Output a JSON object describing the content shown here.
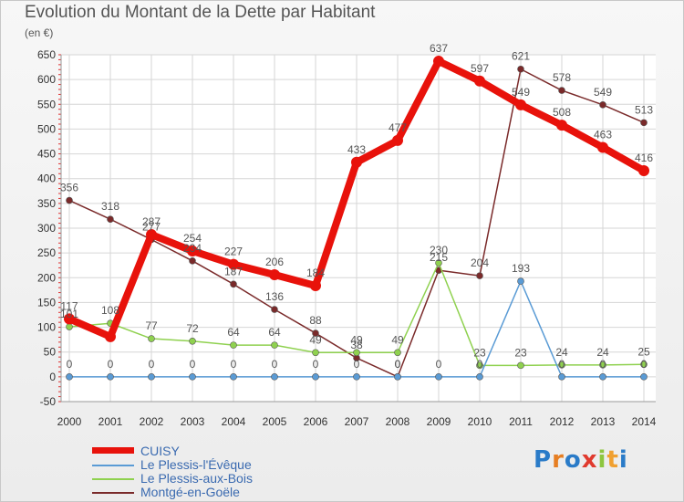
{
  "title": "Evolution du Montant de la Dette par Habitant",
  "unit": "(en €)",
  "brand": {
    "letters": [
      "P",
      "r",
      "o",
      "x",
      "i",
      "t",
      "i"
    ],
    "colors": [
      "#2a7bc8",
      "#e67e22",
      "#2a7bc8",
      "#e03a2e",
      "#8dc63f",
      "#f0a030",
      "#2a7bc8"
    ]
  },
  "chart_data": {
    "type": "line",
    "x": [
      2000,
      2001,
      2002,
      2003,
      2004,
      2005,
      2006,
      2007,
      2008,
      2009,
      2010,
      2011,
      2012,
      2013,
      2014
    ],
    "ylim": [
      -50,
      650
    ],
    "yticks": [
      -50,
      0,
      50,
      100,
      150,
      200,
      250,
      300,
      350,
      400,
      450,
      500,
      550,
      600,
      650
    ],
    "grid": true,
    "legend": "bottom-left",
    "series": [
      {
        "name": "CUISY",
        "color": "#e8120b",
        "values": [
          117,
          81,
          287,
          254,
          227,
          206,
          184,
          433,
          477,
          637,
          597,
          549,
          508,
          463,
          416
        ],
        "labels": [
          "117",
          "",
          "287",
          "254",
          "227",
          "206",
          "184",
          "433",
          "477",
          "637",
          "597",
          "549",
          "508",
          "463",
          "416"
        ]
      },
      {
        "name": "Le Plessis-l'Évêque",
        "color": "#5a9bd5",
        "values": [
          0,
          0,
          0,
          0,
          0,
          0,
          0,
          0,
          0,
          0,
          0,
          193,
          0,
          0,
          0
        ],
        "labels": [
          "0",
          "0",
          "0",
          "0",
          "0",
          "0",
          "0",
          "0",
          "0",
          "0",
          "0",
          "193",
          "0",
          "0",
          "0"
        ]
      },
      {
        "name": "Le Plessis-aux-Bois",
        "color": "#8fd14f",
        "values": [
          101,
          108,
          77,
          72,
          64,
          64,
          49,
          49,
          49,
          230,
          23,
          23,
          24,
          24,
          25
        ],
        "labels": [
          "101",
          "108",
          "77",
          "72",
          "64",
          "64",
          "49",
          "49",
          "49",
          "230",
          "23",
          "23",
          "24",
          "24",
          "25"
        ]
      },
      {
        "name": "Montgé-en-Goële",
        "color": "#7a2a2a",
        "values": [
          356,
          318,
          277,
          234,
          187,
          136,
          88,
          38,
          0,
          215,
          204,
          621,
          578,
          549,
          513
        ],
        "labels": [
          "356",
          "318",
          "277",
          "234",
          "187",
          "136",
          "88",
          "38",
          "0",
          "215",
          "204",
          "621",
          "578",
          "549",
          "513"
        ]
      }
    ]
  }
}
